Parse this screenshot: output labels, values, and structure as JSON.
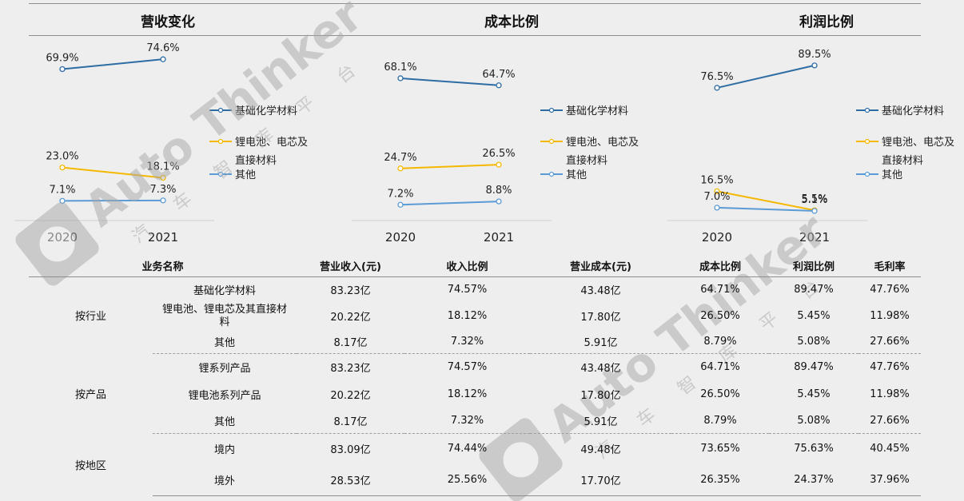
{
  "chart_data": [
    {
      "type": "line",
      "title": "营收变化",
      "categories": [
        "2020",
        "2021"
      ],
      "series": [
        {
          "name": "基础化学材料",
          "values": [
            69.9,
            74.6
          ],
          "labels": [
            "69.9%",
            "74.6%"
          ],
          "color": "#2e6da4"
        },
        {
          "name": "锂电池、电芯及直接材料",
          "values": [
            23.0,
            18.1
          ],
          "labels": [
            "23.0%",
            "18.1%"
          ],
          "color": "#f5b800"
        },
        {
          "name": "其他",
          "values": [
            7.1,
            7.3
          ],
          "labels": [
            "7.1%",
            "7.3%"
          ],
          "color": "#5b9bd5"
        }
      ],
      "legend": "right"
    },
    {
      "type": "line",
      "title": "成本比例",
      "categories": [
        "2020",
        "2021"
      ],
      "series": [
        {
          "name": "基础化学材料",
          "values": [
            68.1,
            64.7
          ],
          "labels": [
            "68.1%",
            "64.7%"
          ],
          "color": "#2e6da4"
        },
        {
          "name": "锂电池、电芯及直接材料",
          "values": [
            24.7,
            26.5
          ],
          "labels": [
            "24.7%",
            "26.5%"
          ],
          "color": "#f5b800"
        },
        {
          "name": "其他",
          "values": [
            7.2,
            8.8
          ],
          "labels": [
            "7.2%",
            "8.8%"
          ],
          "color": "#5b9bd5"
        }
      ],
      "legend": "right"
    },
    {
      "type": "line",
      "title": "利润比例",
      "categories": [
        "2020",
        "2021"
      ],
      "series": [
        {
          "name": "基础化学材料",
          "values": [
            76.5,
            89.5
          ],
          "labels": [
            "76.5%",
            "89.5%"
          ],
          "color": "#2e6da4"
        },
        {
          "name": "锂电池、电芯及直接材料",
          "values": [
            16.5,
            5.5
          ],
          "labels": [
            "16.5%",
            "5.5%"
          ],
          "color": "#f5b800"
        },
        {
          "name": "其他",
          "values": [
            7.0,
            5.1
          ],
          "labels": [
            "7.0%",
            "5.1%"
          ],
          "color": "#5b9bd5"
        }
      ],
      "legend": "right"
    }
  ],
  "legend_labels": {
    "s1": "基础化学材料",
    "s2_line1": "锂电池、电芯及",
    "s2_line2": "直接材料",
    "s3": "其他"
  },
  "table": {
    "headers": [
      "业务名称",
      "营业收入(元)",
      "收入比例",
      "营业成本(元)",
      "成本比例",
      "利润比例",
      "毛利率"
    ],
    "groups": [
      {
        "name": "按行业",
        "rows": [
          {
            "item": "基础化学材料",
            "values": [
              "83.23亿",
              "74.57%",
              "43.48亿",
              "64.71%",
              "89.47%",
              "47.76%"
            ]
          },
          {
            "item": "锂电池、锂电芯及其直接材料",
            "values": [
              "20.22亿",
              "18.12%",
              "17.80亿",
              "26.50%",
              "5.45%",
              "11.98%"
            ]
          },
          {
            "item": "其他",
            "values": [
              "8.17亿",
              "7.32%",
              "5.91亿",
              "8.79%",
              "5.08%",
              "27.66%"
            ]
          }
        ]
      },
      {
        "name": "按产品",
        "rows": [
          {
            "item": "锂系列产品",
            "values": [
              "83.23亿",
              "74.57%",
              "43.48亿",
              "64.71%",
              "89.47%",
              "47.76%"
            ]
          },
          {
            "item": "锂电池系列产品",
            "values": [
              "20.22亿",
              "18.12%",
              "17.80亿",
              "26.50%",
              "5.45%",
              "11.98%"
            ]
          },
          {
            "item": "其他",
            "values": [
              "8.17亿",
              "7.32%",
              "5.91亿",
              "8.79%",
              "5.08%",
              "27.66%"
            ]
          }
        ]
      },
      {
        "name": "按地区",
        "rows": [
          {
            "item": "境内",
            "values": [
              "83.09亿",
              "74.44%",
              "49.48亿",
              "73.65%",
              "75.63%",
              "40.45%"
            ]
          },
          {
            "item": "境外",
            "values": [
              "28.53亿",
              "25.56%",
              "17.70亿",
              "26.35%",
              "24.37%",
              "37.96%"
            ]
          }
        ]
      }
    ]
  },
  "watermark": {
    "text": "Auto Thinker",
    "sub": "汽 车 智 库 平 台"
  }
}
